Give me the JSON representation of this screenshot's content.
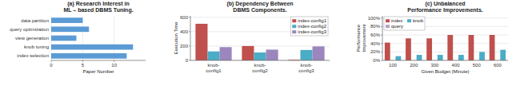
{
  "chart_data": [
    {
      "type": "bar",
      "orientation": "horizontal",
      "title": "(a) Research Interest in\nML – based DBMS Tuning.",
      "categories": [
        "data partition",
        "query optimization",
        "view generation",
        "knob tuning",
        "index selection"
      ],
      "values": [
        5,
        6,
        4,
        13,
        12
      ],
      "color": "#5b9bd5",
      "xlabel": "Paper Number",
      "xlim": [
        0,
        15
      ],
      "xticks": [
        0,
        5,
        10
      ],
      "grid": true
    },
    {
      "type": "bar",
      "title": "(b) Dependency Between\nDBMS Components.",
      "categories": [
        "knob-\nconfig1",
        "knob-\nconfig2",
        "knob-\nconfig3"
      ],
      "series": [
        {
          "name": "index-config1",
          "color": "#c0504d",
          "values": [
            510,
            200,
            8
          ]
        },
        {
          "name": "index-config2",
          "color": "#4bacc6",
          "values": [
            125,
            110,
            145
          ]
        },
        {
          "name": "index-config3",
          "color": "#9b86bd",
          "values": [
            185,
            150,
            195
          ]
        }
      ],
      "ylabel": "Execution Time",
      "ylim": [
        0,
        620
      ],
      "yticks": [
        0,
        200,
        400,
        600
      ],
      "grid": true,
      "legend": "upper right"
    },
    {
      "type": "bar",
      "title": "(c) Unbalanced\nPerformance Improvements.",
      "categories": [
        "100",
        "200",
        "300",
        "400",
        "500",
        "600"
      ],
      "series": [
        {
          "name": "index",
          "color": "#c0504d",
          "values": [
            0.42,
            0.52,
            0.52,
            0.6,
            0.6,
            0.6
          ]
        },
        {
          "name": "query",
          "color": "#b3a0c8",
          "values": [
            0,
            0,
            0,
            0,
            0,
            0
          ]
        },
        {
          "name": "knob",
          "color": "#4bacc6",
          "values": [
            0.1,
            0.13,
            0.13,
            0.13,
            0.2,
            0.25
          ]
        }
      ],
      "ylabel": "Performance\nImprovement",
      "xlabel": "Given Budget (Minute)",
      "ylim": [
        0,
        1.05
      ],
      "yticks": [
        {
          "value": 0.0,
          "label": "0%"
        },
        {
          "value": 0.2,
          "label": "20%"
        },
        {
          "value": 0.4,
          "label": "40%"
        },
        {
          "value": 0.6,
          "label": "60%"
        },
        {
          "value": 0.8,
          "label": "80%"
        },
        {
          "value": 1.0,
          "label": "100%"
        }
      ],
      "grid": true,
      "legend": "upper left"
    }
  ]
}
